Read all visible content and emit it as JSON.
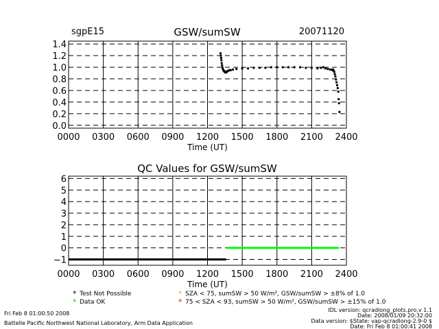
{
  "header": {
    "site": "sgpE15",
    "title": "GSW/sumSW",
    "date": "20071120"
  },
  "chart_data": [
    {
      "type": "scatter",
      "title": "GSW/sumSW",
      "xlabel": "Time (UT)",
      "ylabel": "",
      "xlim": [
        0,
        2400
      ],
      "ylim": [
        -0.05,
        1.45
      ],
      "x_ticks": [
        0,
        300,
        600,
        900,
        1200,
        1500,
        1800,
        2100,
        2400
      ],
      "x_tick_labels": [
        "0000",
        "0300",
        "0600",
        "0900",
        "1200",
        "1500",
        "1800",
        "2100",
        "2400"
      ],
      "y_ticks": [
        0.0,
        0.2,
        0.4,
        0.6,
        0.8,
        1.0,
        1.2,
        1.4
      ],
      "y_tick_labels": [
        "0.0",
        "0.2",
        "0.4",
        "0.6",
        "0.8",
        "1.0",
        "1.2",
        "1.4"
      ],
      "grid": true,
      "series": [
        {
          "color": "#000000",
          "x": [
            1312,
            1315,
            1318,
            1320,
            1323,
            1326,
            1330,
            1335,
            1340,
            1345,
            1350,
            1355,
            1360,
            1365,
            1370,
            1380,
            1390,
            1400,
            1420,
            1450,
            1500,
            1550,
            1600,
            1650,
            1700,
            1750,
            1800,
            1850,
            1900,
            1950,
            2000,
            2050,
            2100,
            2150,
            2180,
            2200,
            2220,
            2240,
            2260,
            2270,
            2280,
            2285,
            2290,
            2295,
            2300,
            2305,
            2310,
            2315,
            2320,
            2325,
            2330,
            2333,
            2336,
            2340
          ],
          "y": [
            1.24,
            1.2,
            1.16,
            1.12,
            1.07,
            1.03,
            0.99,
            0.96,
            0.94,
            0.93,
            0.92,
            0.91,
            0.91,
            0.92,
            0.93,
            0.94,
            0.95,
            0.95,
            0.96,
            0.97,
            0.98,
            0.98,
            0.99,
            0.99,
            0.99,
            1.0,
            1.0,
            1.0,
            1.0,
            1.0,
            1.0,
            0.99,
            0.99,
            0.98,
            0.99,
            1.0,
            0.98,
            0.97,
            0.96,
            0.96,
            0.95,
            0.96,
            0.94,
            0.92,
            0.88,
            0.84,
            0.79,
            0.74,
            0.69,
            0.64,
            0.58,
            0.45,
            0.38,
            0.23
          ]
        }
      ]
    },
    {
      "type": "scatter",
      "title": "QC Values for GSW/sumSW",
      "xlabel": "Time (UT)",
      "ylabel": "",
      "xlim": [
        0,
        2400
      ],
      "ylim": [
        -1.5,
        6.2
      ],
      "x_ticks": [
        0,
        300,
        600,
        900,
        1200,
        1500,
        1800,
        2100,
        2400
      ],
      "x_tick_labels": [
        "0000",
        "0300",
        "0600",
        "0900",
        "1200",
        "1500",
        "1800",
        "2100",
        "2400"
      ],
      "y_ticks": [
        -1,
        0,
        1,
        2,
        3,
        4,
        5,
        6
      ],
      "y_tick_labels": [
        "−1",
        "0",
        "1",
        "2",
        "3",
        "4",
        "5",
        "6"
      ],
      "grid": true,
      "series": [
        {
          "color": "#000000",
          "x_range": [
            0,
            1360
          ],
          "y": -1
        },
        {
          "color": "#00ff00",
          "x_range": [
            1365,
            2335
          ],
          "y": 0
        }
      ]
    }
  ],
  "legend": [
    {
      "marker": "*",
      "color": "#000000",
      "text": "Test Not Possible"
    },
    {
      "marker": "*",
      "color": "#00ff00",
      "text": "Data OK"
    },
    {
      "marker": "*",
      "color": "#ffa500",
      "text": "SZA < 75, sumSW > 50 W/m², GSW/sumSW > ±8% of 1.0"
    },
    {
      "marker": "*",
      "color": "#ff0000",
      "text": "75 < SZA < 93, sumSW > 50 W/m², GSW/sumSW > ±15% of 1.0"
    }
  ],
  "footer": {
    "left_line1": "Fri Feb  8 01:00:50 2008",
    "left_line2": "Battelle Pacific Northwest National Laboratory, Arm Data Application",
    "right_line1": "IDL version: qcradlong_plots.pro,v 1.1",
    "right_line2": "Date: 2008/01/09 20:32:00",
    "right_line3": "Data version: $State: vap-qcradlong-2.9-0 $",
    "right_line4": "Date: Fri Feb  8 01:00:41 2008"
  }
}
